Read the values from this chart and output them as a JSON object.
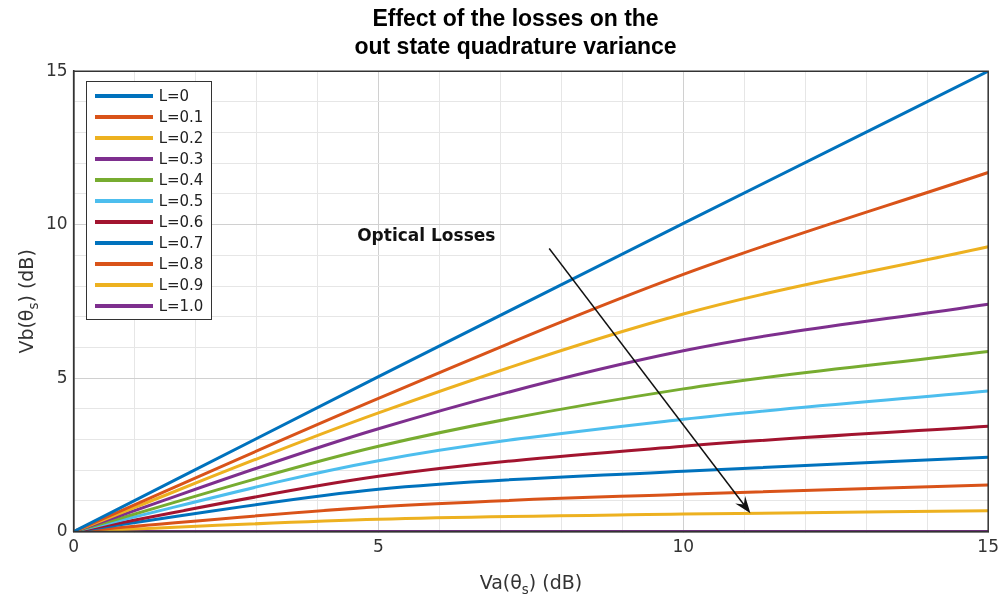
{
  "chart_data": {
    "type": "line",
    "title": "Effect of the losses on the\nout state quadrature variance",
    "xlabel": "Va(θ$_{s}$) (dB)",
    "ylabel": "Vb(θ$_{s}$) (dB)",
    "x": [
      0,
      5,
      10,
      15
    ],
    "series": [
      {
        "name": "L=0",
        "color": "#0072bd",
        "values": [
          0,
          5.05,
          10.04,
          15
        ]
      },
      {
        "name": "L=0.1",
        "color": "#d95319",
        "values": [
          0,
          4.34,
          8.38,
          11.7
        ]
      },
      {
        "name": "L=0.2",
        "color": "#edb120",
        "values": [
          0,
          3.87,
          7.09,
          9.28
        ]
      },
      {
        "name": "L=0.3",
        "color": "#7e2f8e",
        "values": [
          0,
          3.35,
          5.89,
          7.41
        ]
      },
      {
        "name": "L=0.4",
        "color": "#77ac30",
        "values": [
          0,
          2.78,
          4.65,
          5.87
        ]
      },
      {
        "name": "L=0.5",
        "color": "#4dbeee",
        "values": [
          0,
          2.31,
          3.66,
          4.58
        ]
      },
      {
        "name": "L=0.6",
        "color": "#a2142f",
        "values": [
          0,
          1.8,
          2.78,
          3.43
        ]
      },
      {
        "name": "L=0.7",
        "color": "#0072bd",
        "values": [
          0,
          1.38,
          1.97,
          2.42
        ]
      },
      {
        "name": "L=0.8",
        "color": "#d95319",
        "values": [
          0,
          0.81,
          1.22,
          1.52
        ]
      },
      {
        "name": "L=0.9",
        "color": "#edb120",
        "values": [
          0,
          0.4,
          0.57,
          0.68
        ]
      },
      {
        "name": "L=1.0",
        "color": "#7e2f8e",
        "values": [
          0,
          0,
          0,
          0
        ]
      }
    ],
    "xlim": [
      0,
      15
    ],
    "xticks": [
      0,
      {
        "value": 1,
        "label": null
      },
      {
        "value": 2,
        "label": null
      },
      {
        "value": 3,
        "label": null
      },
      {
        "value": 4,
        "label": null
      },
      5,
      {
        "value": 6,
        "label": null
      },
      {
        "value": 7,
        "label": null
      },
      {
        "value": 8,
        "label": null
      },
      {
        "value": 9,
        "label": null
      },
      10,
      {
        "value": 11,
        "label": null
      },
      {
        "value": 12,
        "label": null
      },
      {
        "value": 13,
        "label": null
      },
      {
        "value": 14,
        "label": null
      },
      15
    ],
    "ylim": [
      0,
      15
    ],
    "yticks": [
      0,
      {
        "value": 1,
        "label": null
      },
      {
        "value": 2,
        "label": null
      },
      {
        "value": 3,
        "label": null
      },
      {
        "value": 4,
        "label": null
      },
      5,
      {
        "value": 6,
        "label": null
      },
      {
        "value": 7,
        "label": null
      },
      {
        "value": 8,
        "label": null
      },
      {
        "value": 9,
        "label": null
      },
      10,
      {
        "value": 11,
        "label": null
      },
      {
        "value": 12,
        "label": null
      },
      {
        "value": 13,
        "label": null
      },
      {
        "value": 14,
        "label": null
      },
      15
    ],
    "grid": true,
    "legend": "top left",
    "marker": "none",
    "line_style": "solid",
    "annotations": [
      "Optical Losses"
    ]
  }
}
